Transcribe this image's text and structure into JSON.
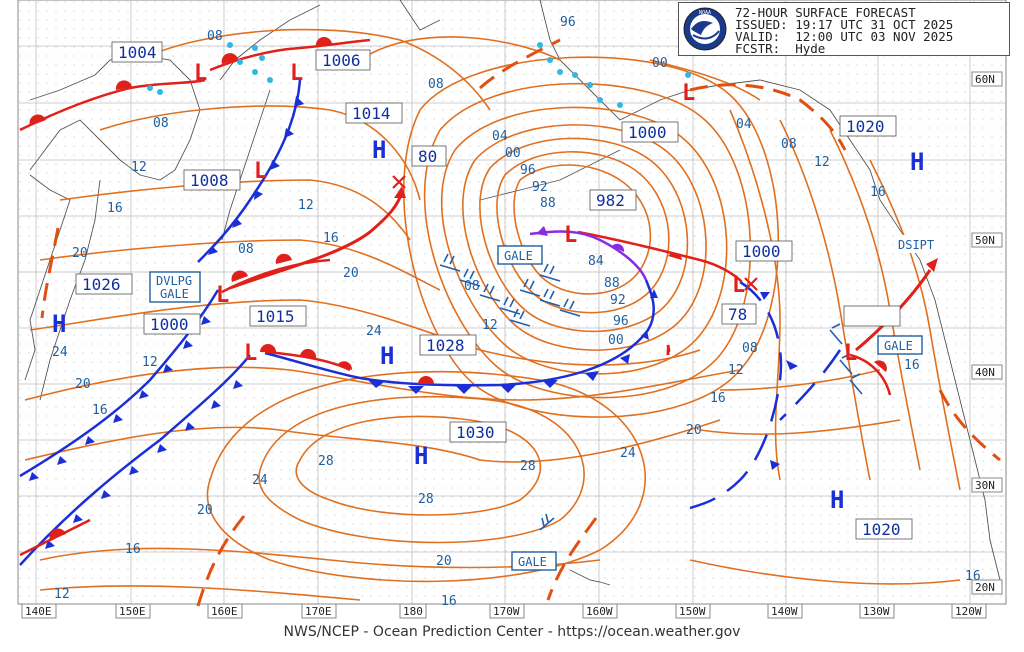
{
  "header": {
    "title": "72-HOUR SURFACE FORECAST",
    "issued": "ISSUED: 19:17 UTC 31 OCT 2025",
    "valid": "VALID:  12:00 UTC 03 NOV 2025",
    "forecaster": "FCSTR:  Hyde",
    "logo_text": "NOAA"
  },
  "footer": "NWS/NCEP - Ocean Prediction Center - https://ocean.weather.gov",
  "longitude_labels": [
    "140E",
    "150E",
    "160E",
    "170E",
    "180",
    "170W",
    "160W",
    "150W",
    "140W",
    "130W",
    "120W"
  ],
  "latitude_labels": [
    "60N",
    "50N",
    "40N",
    "30N",
    "20N"
  ],
  "high_symbol": "H",
  "low_symbol": "L",
  "pressure_centers": [
    {
      "type": "low",
      "value": "1004"
    },
    {
      "type": "low",
      "value": "1006"
    },
    {
      "type": "high",
      "value": "1014"
    },
    {
      "type": "low",
      "value": "80"
    },
    {
      "type": "low",
      "value": "1008"
    },
    {
      "type": "high",
      "value": "1026"
    },
    {
      "type": "low",
      "value": "1000"
    },
    {
      "type": "low",
      "value": "1015"
    },
    {
      "type": "high",
      "value": "1028"
    },
    {
      "type": "low",
      "value": "982"
    },
    {
      "type": "low",
      "value": "1000"
    },
    {
      "type": "high",
      "value": "1020"
    },
    {
      "type": "low",
      "value": "1000"
    },
    {
      "type": "low",
      "value": "78"
    },
    {
      "type": "high",
      "value": "1030"
    },
    {
      "type": "high",
      "value": "1020"
    }
  ],
  "warnings": [
    "DVLPG\nGALE",
    "GALE",
    "GALE",
    "GALE"
  ],
  "annotation": "DSIPT",
  "isobar_labels": [
    "08",
    "08",
    "04",
    "00",
    "96",
    "92",
    "88",
    "84",
    "88",
    "92",
    "96",
    "00",
    "08",
    "12",
    "16",
    "20",
    "24",
    "28",
    "28",
    "24",
    "20",
    "16",
    "12",
    "16",
    "20",
    "24",
    "28",
    "12",
    "16",
    "20",
    "24",
    "08",
    "12",
    "16",
    "20",
    "04",
    "08",
    "12",
    "16",
    "00",
    "12",
    "16",
    "20",
    "08",
    "08",
    "12",
    "16",
    "96",
    "16"
  ],
  "colors": {
    "isobar": "#e07020",
    "cold_front": "#1a2fd6",
    "warm_front": "#e0201a",
    "occluded_front": "#8a2be2",
    "trough": "#e05010",
    "label": "#1f5fa0"
  }
}
